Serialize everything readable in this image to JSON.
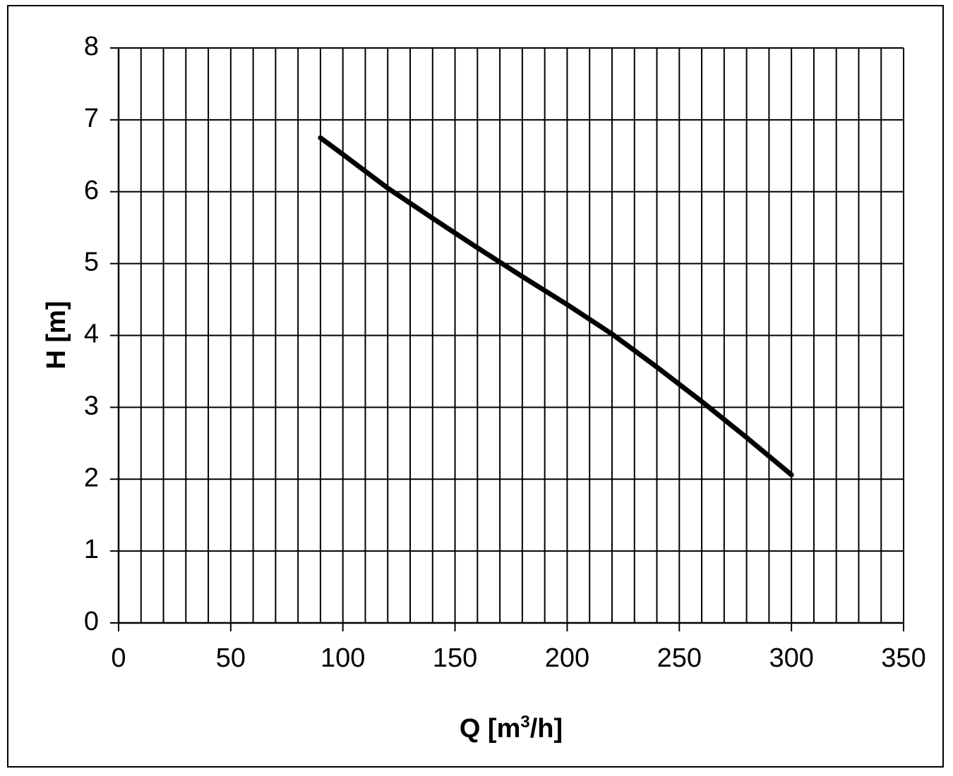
{
  "chart_data": {
    "type": "line",
    "title": "",
    "xlabel": {
      "prefix": "Q [m",
      "superscript": "3",
      "suffix": "/h]"
    },
    "ylabel": "H [m]",
    "xlim": [
      0,
      350
    ],
    "ylim": [
      0,
      8
    ],
    "x_ticks": [
      0,
      50,
      100,
      150,
      200,
      250,
      300,
      350
    ],
    "y_ticks": [
      0,
      1,
      2,
      3,
      4,
      5,
      6,
      7,
      8
    ],
    "x_minor_step": 10,
    "grid": true,
    "legend": "none",
    "series": [
      {
        "color": "#000000",
        "x": [
          90,
          100,
          120,
          140,
          160,
          180,
          200,
          220,
          240,
          260,
          280,
          300
        ],
        "y": [
          6.75,
          6.52,
          6.05,
          5.63,
          5.22,
          4.82,
          4.43,
          4.02,
          3.56,
          3.08,
          2.58,
          2.06
        ]
      }
    ]
  }
}
